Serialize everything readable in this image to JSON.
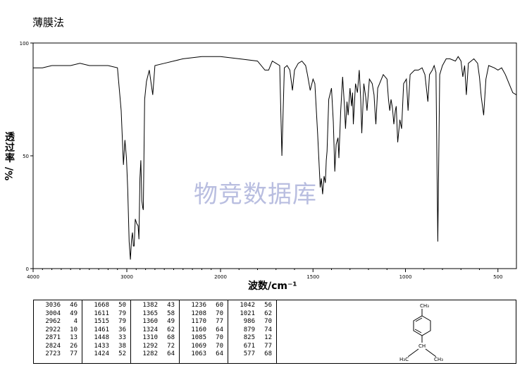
{
  "title": "薄膜法",
  "watermark": "物竞数据库",
  "axis": {
    "ylabel_main": "透过率",
    "ylabel_unit": "%/",
    "xlabel": "波数/cm⁻¹"
  },
  "chart_data": {
    "type": "line",
    "title": "",
    "xlabel": "波数/cm⁻¹",
    "ylabel": "透过率 %/",
    "xlim": [
      4000,
      400
    ],
    "ylim": [
      0,
      100
    ],
    "x_ticks": [
      4000,
      3000,
      2000,
      1500,
      1000,
      500
    ],
    "y_ticks": [
      0,
      50,
      100
    ],
    "grid": false,
    "series": [
      {
        "points": [
          [
            4000,
            89
          ],
          [
            3900,
            89
          ],
          [
            3800,
            90
          ],
          [
            3600,
            90
          ],
          [
            3500,
            91
          ],
          [
            3400,
            90
          ],
          [
            3200,
            90
          ],
          [
            3100,
            89
          ],
          [
            3060,
            70
          ],
          [
            3036,
            46
          ],
          [
            3020,
            57
          ],
          [
            3004,
            49
          ],
          [
            2990,
            35
          ],
          [
            2975,
            12
          ],
          [
            2962,
            4
          ],
          [
            2950,
            13
          ],
          [
            2940,
            16
          ],
          [
            2930,
            10
          ],
          [
            2922,
            10
          ],
          [
            2910,
            22
          ],
          [
            2895,
            20
          ],
          [
            2880,
            19
          ],
          [
            2871,
            13
          ],
          [
            2860,
            40
          ],
          [
            2850,
            48
          ],
          [
            2840,
            30
          ],
          [
            2830,
            27
          ],
          [
            2824,
            26
          ],
          [
            2810,
            75
          ],
          [
            2790,
            83
          ],
          [
            2760,
            88
          ],
          [
            2723,
            77
          ],
          [
            2700,
            90
          ],
          [
            2600,
            91
          ],
          [
            2400,
            93
          ],
          [
            2200,
            94
          ],
          [
            2000,
            94
          ],
          [
            1900,
            93
          ],
          [
            1800,
            92
          ],
          [
            1760,
            88
          ],
          [
            1740,
            88
          ],
          [
            1720,
            92
          ],
          [
            1700,
            91
          ],
          [
            1680,
            90
          ],
          [
            1668,
            50
          ],
          [
            1655,
            89
          ],
          [
            1640,
            90
          ],
          [
            1625,
            88
          ],
          [
            1611,
            79
          ],
          [
            1600,
            88
          ],
          [
            1580,
            91
          ],
          [
            1560,
            92
          ],
          [
            1540,
            90
          ],
          [
            1530,
            86
          ],
          [
            1515,
            79
          ],
          [
            1500,
            84
          ],
          [
            1490,
            82
          ],
          [
            1475,
            60
          ],
          [
            1461,
            36
          ],
          [
            1455,
            40
          ],
          [
            1448,
            33
          ],
          [
            1440,
            41
          ],
          [
            1433,
            38
          ],
          [
            1428,
            48
          ],
          [
            1424,
            52
          ],
          [
            1415,
            75
          ],
          [
            1400,
            80
          ],
          [
            1390,
            65
          ],
          [
            1382,
            43
          ],
          [
            1375,
            55
          ],
          [
            1365,
            58
          ],
          [
            1360,
            49
          ],
          [
            1350,
            70
          ],
          [
            1340,
            85
          ],
          [
            1330,
            72
          ],
          [
            1324,
            62
          ],
          [
            1316,
            74
          ],
          [
            1310,
            68
          ],
          [
            1300,
            80
          ],
          [
            1292,
            72
          ],
          [
            1286,
            78
          ],
          [
            1282,
            64
          ],
          [
            1270,
            82
          ],
          [
            1260,
            78
          ],
          [
            1250,
            88
          ],
          [
            1242,
            75
          ],
          [
            1236,
            60
          ],
          [
            1225,
            82
          ],
          [
            1215,
            76
          ],
          [
            1208,
            70
          ],
          [
            1195,
            84
          ],
          [
            1180,
            82
          ],
          [
            1170,
            77
          ],
          [
            1165,
            70
          ],
          [
            1160,
            64
          ],
          [
            1150,
            80
          ],
          [
            1120,
            86
          ],
          [
            1100,
            84
          ],
          [
            1092,
            75
          ],
          [
            1085,
            70
          ],
          [
            1078,
            75
          ],
          [
            1072,
            72
          ],
          [
            1069,
            70
          ],
          [
            1063,
            64
          ],
          [
            1055,
            70
          ],
          [
            1050,
            72
          ],
          [
            1042,
            56
          ],
          [
            1030,
            66
          ],
          [
            1021,
            62
          ],
          [
            1010,
            82
          ],
          [
            995,
            84
          ],
          [
            986,
            70
          ],
          [
            975,
            86
          ],
          [
            950,
            88
          ],
          [
            930,
            88
          ],
          [
            910,
            89
          ],
          [
            895,
            86
          ],
          [
            879,
            74
          ],
          [
            870,
            86
          ],
          [
            855,
            88
          ],
          [
            845,
            90
          ],
          [
            835,
            87
          ],
          [
            825,
            12
          ],
          [
            815,
            86
          ],
          [
            800,
            90
          ],
          [
            780,
            93
          ],
          [
            760,
            93
          ],
          [
            730,
            92
          ],
          [
            715,
            94
          ],
          [
            700,
            92
          ],
          [
            690,
            85
          ],
          [
            680,
            90
          ],
          [
            671,
            77
          ],
          [
            660,
            91
          ],
          [
            630,
            93
          ],
          [
            610,
            91
          ],
          [
            600,
            85
          ],
          [
            590,
            76
          ],
          [
            577,
            68
          ],
          [
            565,
            84
          ],
          [
            550,
            90
          ],
          [
            520,
            89
          ],
          [
            500,
            88
          ],
          [
            480,
            89
          ],
          [
            460,
            86
          ],
          [
            440,
            82
          ],
          [
            420,
            78
          ],
          [
            400,
            77
          ]
        ]
      }
    ]
  },
  "peak_table": [
    [
      [
        "3036",
        "46"
      ],
      [
        "3004",
        "49"
      ],
      [
        "2962",
        "4"
      ],
      [
        "2922",
        "10"
      ],
      [
        "2871",
        "13"
      ],
      [
        "2824",
        "26"
      ],
      [
        "2723",
        "77"
      ]
    ],
    [
      [
        "1668",
        "50"
      ],
      [
        "1611",
        "79"
      ],
      [
        "1515",
        "79"
      ],
      [
        "1461",
        "36"
      ],
      [
        "1448",
        "33"
      ],
      [
        "1433",
        "38"
      ],
      [
        "1424",
        "52"
      ]
    ],
    [
      [
        "1382",
        "43"
      ],
      [
        "1365",
        "58"
      ],
      [
        "1360",
        "49"
      ],
      [
        "1324",
        "62"
      ],
      [
        "1310",
        "68"
      ],
      [
        "1292",
        "72"
      ],
      [
        "1282",
        "64"
      ]
    ],
    [
      [
        "1236",
        "60"
      ],
      [
        "1208",
        "70"
      ],
      [
        "1170",
        "77"
      ],
      [
        "1160",
        "64"
      ],
      [
        "1085",
        "70"
      ],
      [
        "1069",
        "70"
      ],
      [
        "1063",
        "64"
      ]
    ],
    [
      [
        "1042",
        "56"
      ],
      [
        "1021",
        "62"
      ],
      [
        "986",
        "70"
      ],
      [
        "879",
        "74"
      ],
      [
        "825",
        "12"
      ],
      [
        "671",
        "77"
      ],
      [
        "577",
        "68"
      ]
    ]
  ],
  "structure": {
    "top_label": "CH₃",
    "left_label": "H₃C",
    "right_label": "CH₃",
    "center_label": "CH"
  }
}
